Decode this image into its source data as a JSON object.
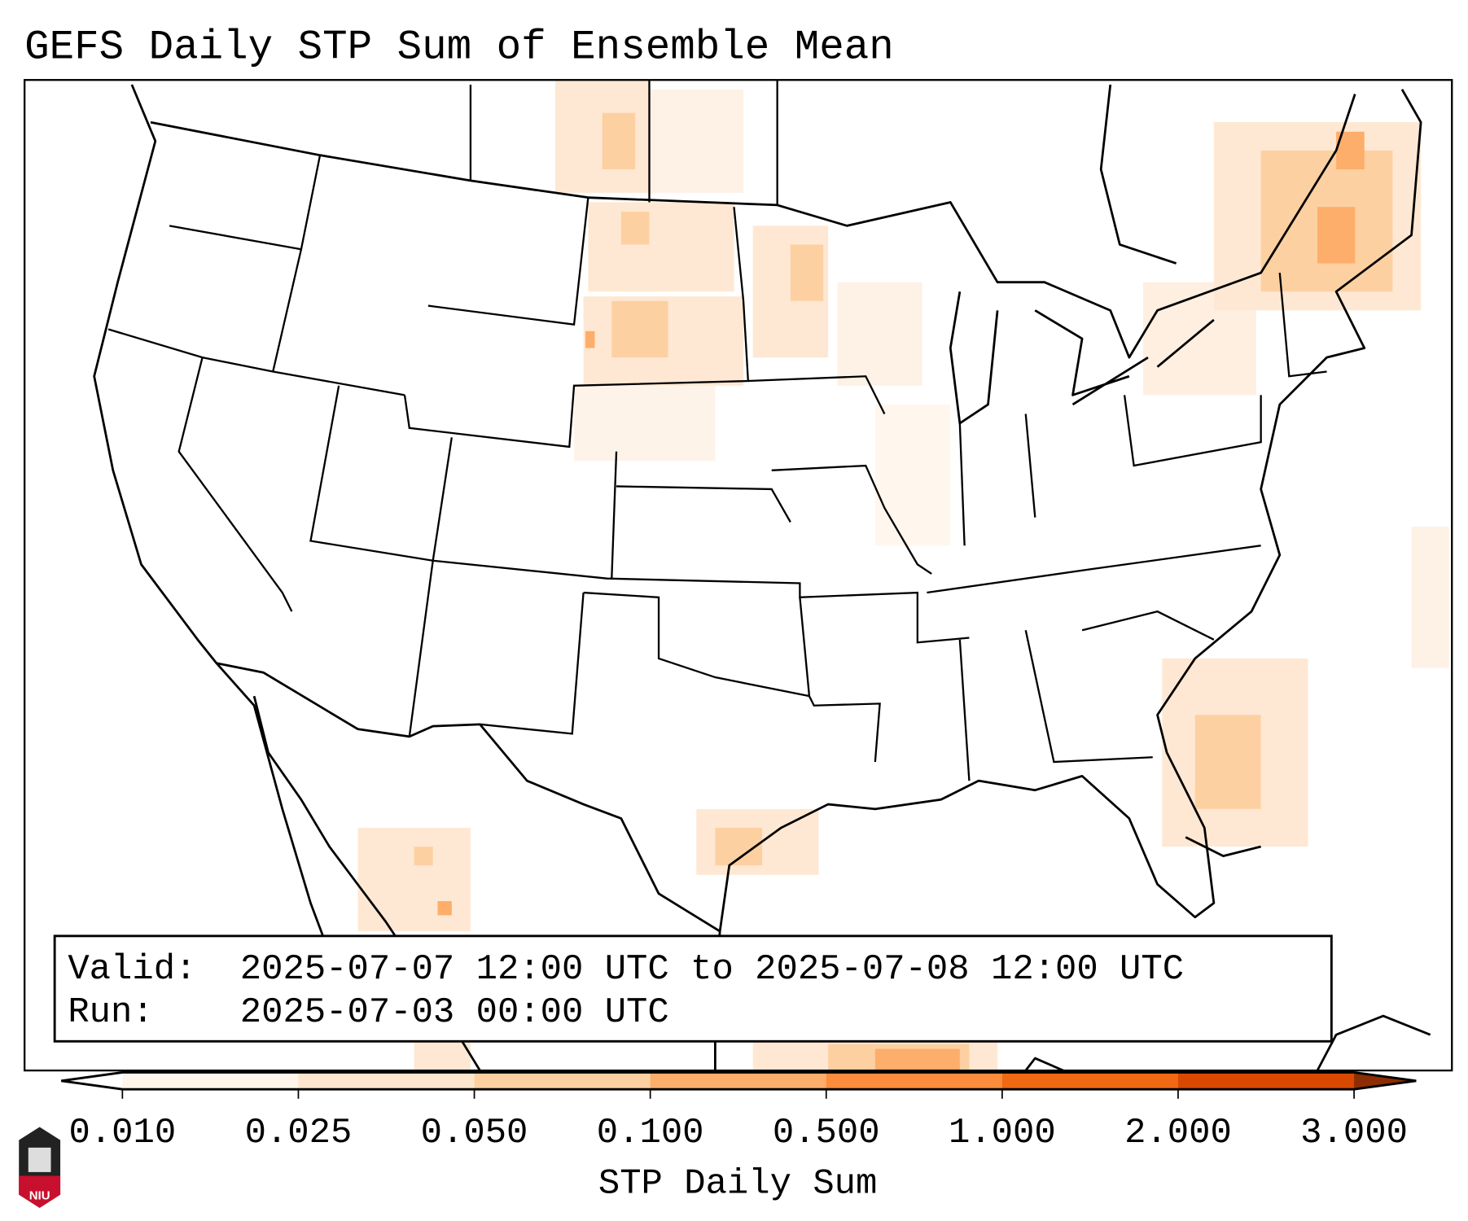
{
  "title": "GEFS Daily STP Sum of Ensemble Mean",
  "info_box": {
    "valid_label": "Valid:",
    "valid_value": "2025-07-07 12:00 UTC to 2025-07-08 12:00 UTC",
    "run_label": "Run:",
    "run_value": "2025-07-03 00:00 UTC"
  },
  "colorbar": {
    "label": "STP Daily Sum",
    "ticks": [
      "0.010",
      "0.025",
      "0.050",
      "0.100",
      "0.500",
      "1.000",
      "2.000",
      "3.000"
    ],
    "colors": [
      "#fff5eb",
      "#fee6ce",
      "#fdd0a2",
      "#fdae6b",
      "#fd8d3c",
      "#f16913",
      "#d94801",
      "#8c2d04"
    ],
    "under_color": "#ffffff",
    "over_color": "#8c2d04"
  },
  "logo": {
    "text": "NIU"
  }
}
